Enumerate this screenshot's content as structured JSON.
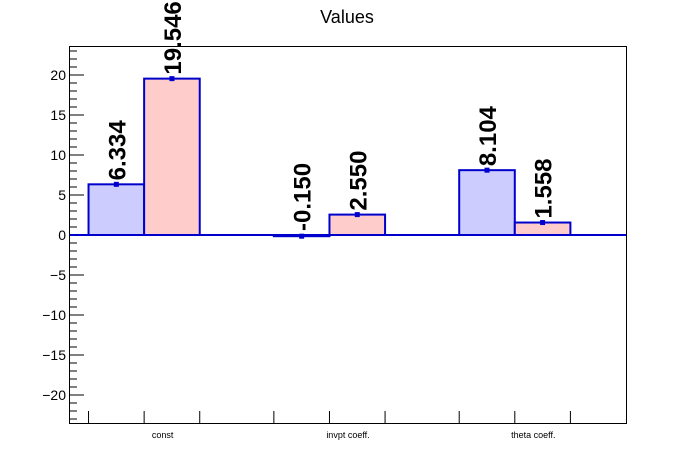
{
  "chart_data": {
    "type": "bar",
    "title": "Values",
    "categories": [
      "const",
      "invpt coeff.",
      "theta coeff."
    ],
    "series": [
      {
        "values": [
          6.334,
          -0.15,
          8.104
        ],
        "labels": [
          "6.334",
          "-0.150",
          "8.104"
        ],
        "color": "#ccccff"
      },
      {
        "values": [
          19.546,
          2.55,
          1.558
        ],
        "labels": [
          "19.546",
          "2.550",
          "1.558"
        ],
        "color": "#ffcccc"
      }
    ],
    "ylim": [
      -23.5,
      23.5
    ],
    "yticks": [
      -20,
      -15,
      -10,
      -5,
      0,
      5,
      10,
      15,
      20
    ],
    "ytick_labels": [
      "−20",
      "−15",
      "−10",
      "−5",
      "0",
      "5",
      "10",
      "15",
      "20"
    ],
    "outline_color": "#0000cc",
    "grid": false,
    "legend": "none"
  }
}
